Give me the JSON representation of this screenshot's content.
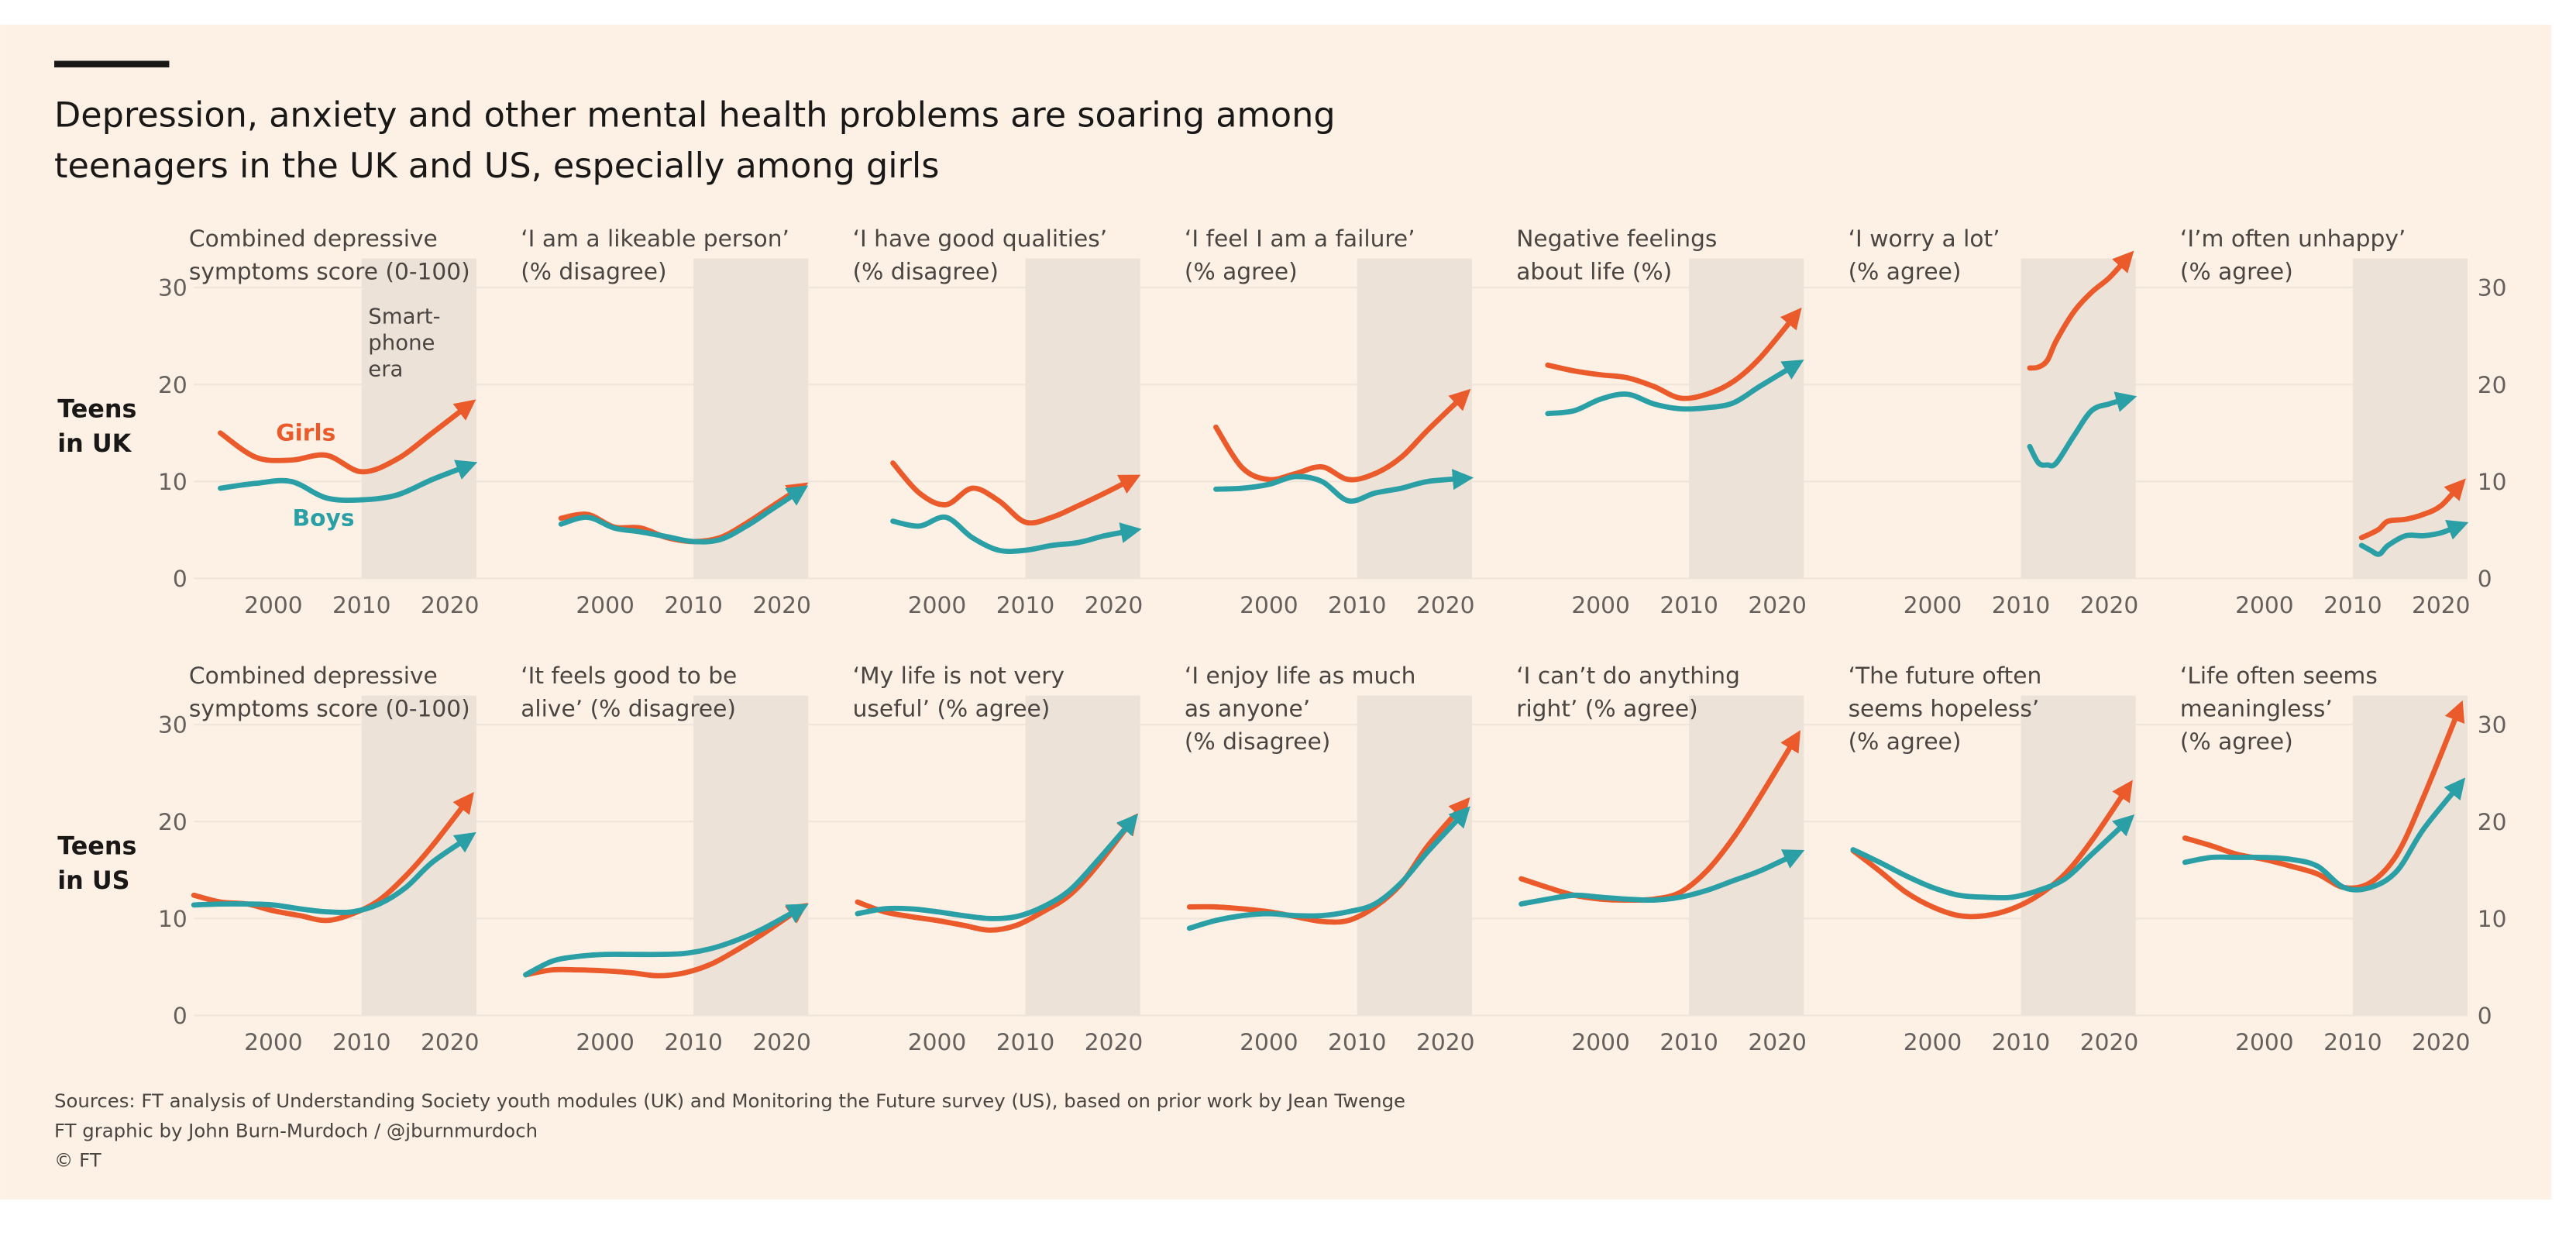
{
  "header": {
    "title": [
      "Depression, anxiety and other mental health problems are soaring among",
      "teenagers in the UK and US, especially among girls"
    ]
  },
  "rows": [
    {
      "label": [
        "Teens",
        "in UK"
      ]
    },
    {
      "label": [
        "Teens",
        "in US"
      ]
    }
  ],
  "footer": [
    "Sources: FT analysis of Understanding Society youth modules (UK) and Monitoring the Future survey (US), based on prior work by Jean Twenge",
    "FT graphic by John Burn-Murdoch / @jburnmurdoch",
    "© FT"
  ],
  "chart_data": [
    {
      "type": "line",
      "title": [
        "Combined depressive",
        "symptoms score (0-100)"
      ],
      "annotation": [
        "Smart-",
        "phone",
        "era"
      ],
      "x": [
        1994,
        1998,
        2002,
        2006,
        2010,
        2014,
        2018,
        2022
      ],
      "series": [
        {
          "name": "Girls",
          "color": "#ea5a2a",
          "values": [
            15,
            12.5,
            12.2,
            12.7,
            11,
            12.3,
            15,
            17.8
          ]
        },
        {
          "name": "Boys",
          "color": "#2a9fa5",
          "values": [
            9.3,
            9.8,
            10,
            8.3,
            8.1,
            8.6,
            10.2,
            11.6
          ]
        }
      ],
      "xlim": [
        1991,
        2023
      ],
      "ylim": [
        0,
        33
      ],
      "xticks": [
        2000,
        2010,
        2020
      ],
      "yticks": [
        0,
        10,
        20,
        30
      ],
      "yaxis": "left",
      "grid": true,
      "shade": [
        2010,
        2023
      ]
    },
    {
      "type": "line",
      "title": [
        "‘I am a likeable person’",
        "(% disagree)"
      ],
      "x": [
        1995,
        1998,
        2001,
        2004,
        2007,
        2010,
        2013,
        2016,
        2019,
        2022
      ],
      "series": [
        {
          "color": "#ea5a2a",
          "values": [
            6.2,
            6.6,
            5.3,
            5.2,
            4.2,
            3.8,
            4.2,
            5.7,
            7.5,
            9.3
          ]
        },
        {
          "color": "#2a9fa5",
          "values": [
            5.6,
            6.3,
            5.2,
            4.8,
            4.3,
            3.8,
            4.0,
            5.4,
            7.2,
            9.0
          ]
        }
      ],
      "xlim": [
        1991,
        2023
      ],
      "ylim": [
        0,
        33
      ],
      "xticks": [
        2000,
        2010,
        2020
      ],
      "shade": [
        2010,
        2023
      ]
    },
    {
      "type": "line",
      "title": [
        "‘I have good qualities’",
        "(% disagree)"
      ],
      "x": [
        1995,
        1998,
        2001,
        2004,
        2007,
        2010,
        2013,
        2016,
        2019,
        2022
      ],
      "series": [
        {
          "color": "#ea5a2a",
          "values": [
            11.9,
            8.8,
            7.6,
            9.3,
            8,
            5.8,
            6.3,
            7.5,
            8.8,
            10.2
          ]
        },
        {
          "color": "#2a9fa5",
          "values": [
            5.9,
            5.4,
            6.3,
            4.2,
            2.9,
            2.9,
            3.4,
            3.7,
            4.4,
            4.9
          ]
        }
      ],
      "xlim": [
        1991,
        2023
      ],
      "ylim": [
        0,
        33
      ],
      "xticks": [
        2000,
        2010,
        2020
      ],
      "shade": [
        2010,
        2023
      ]
    },
    {
      "type": "line",
      "title": [
        "‘I feel I am a failure’",
        "(% agree)"
      ],
      "x": [
        1994,
        1997,
        2000,
        2003,
        2006,
        2009,
        2012,
        2015,
        2018,
        2022
      ],
      "series": [
        {
          "color": "#ea5a2a",
          "values": [
            15.6,
            11.4,
            10.2,
            10.8,
            11.5,
            10.2,
            10.8,
            12.5,
            15.3,
            18.8
          ]
        },
        {
          "color": "#2a9fa5",
          "values": [
            9.2,
            9.3,
            9.7,
            10.5,
            10,
            8,
            8.8,
            9.3,
            10,
            10.3
          ]
        }
      ],
      "xlim": [
        1991,
        2023
      ],
      "ylim": [
        0,
        33
      ],
      "xticks": [
        2000,
        2010,
        2020
      ],
      "shade": [
        2010,
        2023
      ]
    },
    {
      "type": "line",
      "title": [
        "Negative feelings",
        "about life (%)"
      ],
      "x": [
        1994,
        1997,
        2000,
        2003,
        2006,
        2009,
        2012,
        2015,
        2018,
        2022
      ],
      "series": [
        {
          "color": "#ea5a2a",
          "values": [
            22,
            21.4,
            21,
            20.7,
            19.8,
            18.6,
            19,
            20.3,
            22.7,
            27.1
          ]
        },
        {
          "color": "#2a9fa5",
          "values": [
            17,
            17.3,
            18.5,
            19,
            18,
            17.5,
            17.6,
            18.1,
            19.8,
            22
          ]
        }
      ],
      "xlim": [
        1991,
        2023
      ],
      "ylim": [
        0,
        33
      ],
      "xticks": [
        2000,
        2010,
        2020
      ],
      "shade": [
        2010,
        2023
      ]
    },
    {
      "type": "line",
      "title": [
        "‘I worry a lot’",
        "(% agree)"
      ],
      "x": [
        2011,
        2012,
        2013,
        2014,
        2016,
        2018,
        2020,
        2022
      ],
      "series": [
        {
          "color": "#ea5a2a",
          "values": [
            21.7,
            21.8,
            22.5,
            24.5,
            27.5,
            29.5,
            31,
            33
          ]
        },
        {
          "color": "#2a9fa5",
          "values": [
            13.6,
            11.9,
            11.7,
            11.9,
            14.7,
            17.3,
            18,
            18.5
          ]
        }
      ],
      "xlim": [
        1991,
        2023
      ],
      "ylim": [
        0,
        33
      ],
      "xticks": [
        2000,
        2010,
        2020
      ],
      "shade": [
        2010,
        2023
      ]
    },
    {
      "type": "line",
      "title": [
        "‘I’m often unhappy’",
        "(% agree)"
      ],
      "x": [
        2011,
        2012,
        2013,
        2014,
        2016,
        2018,
        2020,
        2022
      ],
      "series": [
        {
          "color": "#ea5a2a",
          "values": [
            4.2,
            4.6,
            5.1,
            5.9,
            6.1,
            6.6,
            7.5,
            9.5
          ]
        },
        {
          "color": "#2a9fa5",
          "values": [
            3.4,
            2.9,
            2.5,
            3.4,
            4.4,
            4.4,
            4.7,
            5.4
          ]
        }
      ],
      "xlim": [
        1991,
        2023
      ],
      "ylim": [
        0,
        33
      ],
      "xticks": [
        2000,
        2010,
        2020
      ],
      "yticks": [
        0,
        10,
        20,
        30
      ],
      "yaxis": "right",
      "shade": [
        2010,
        2023
      ]
    },
    {
      "type": "line",
      "title": [
        "Combined depressive",
        "symptoms score (0-100)"
      ],
      "x": [
        1991,
        1994,
        1997,
        2000,
        2003,
        2006,
        2009,
        2012,
        2015,
        2018,
        2022
      ],
      "series": [
        {
          "color": "#ea5a2a",
          "values": [
            12.4,
            11.7,
            11.5,
            10.8,
            10.3,
            9.8,
            10.5,
            11.9,
            14.4,
            17.5,
            22.2
          ]
        },
        {
          "color": "#2a9fa5",
          "values": [
            11.4,
            11.5,
            11.5,
            11.4,
            11,
            10.7,
            10.7,
            11.5,
            13.2,
            15.8,
            18.3
          ]
        }
      ],
      "xlim": [
        1991,
        2023
      ],
      "ylim": [
        0,
        33
      ],
      "xticks": [
        2000,
        2010,
        2020
      ],
      "yticks": [
        0,
        10,
        20,
        30
      ],
      "yaxis": "left",
      "grid": true,
      "shade": [
        2010,
        2023
      ]
    },
    {
      "type": "line",
      "title": [
        "‘It feels good to be",
        "alive’ (% disagree)"
      ],
      "x": [
        1991,
        1994,
        1997,
        2000,
        2003,
        2006,
        2009,
        2012,
        2015,
        2018,
        2022
      ],
      "series": [
        {
          "color": "#ea5a2a",
          "values": [
            4.2,
            4.7,
            4.7,
            4.6,
            4.4,
            4.1,
            4.4,
            5.3,
            6.8,
            8.5,
            11
          ]
        },
        {
          "color": "#2a9fa5",
          "values": [
            4.2,
            5.6,
            6.1,
            6.3,
            6.3,
            6.3,
            6.4,
            6.9,
            7.8,
            9,
            11
          ]
        }
      ],
      "xlim": [
        1991,
        2023
      ],
      "ylim": [
        0,
        33
      ],
      "xticks": [
        2000,
        2010,
        2020
      ],
      "shade": [
        2010,
        2023
      ]
    },
    {
      "type": "line",
      "title": [
        "‘My life is not very",
        "useful’ (% agree)"
      ],
      "x": [
        1991,
        1994,
        1997,
        2000,
        2003,
        2006,
        2009,
        2012,
        2015,
        2018,
        2022
      ],
      "series": [
        {
          "color": "#ea5a2a",
          "values": [
            11.7,
            10.7,
            10.2,
            9.8,
            9.3,
            8.8,
            9.3,
            10.7,
            12.4,
            15.3,
            20
          ]
        },
        {
          "color": "#2a9fa5",
          "values": [
            10.5,
            11,
            11,
            10.7,
            10.3,
            10,
            10.2,
            11.2,
            12.9,
            15.8,
            20
          ]
        }
      ],
      "xlim": [
        1991,
        2023
      ],
      "ylim": [
        0,
        33
      ],
      "xticks": [
        2000,
        2010,
        2020
      ],
      "shade": [
        2010,
        2023
      ]
    },
    {
      "type": "line",
      "title": [
        "‘I enjoy life as much",
        "as anyone’",
        "(% disagree)"
      ],
      "x": [
        1991,
        1994,
        1997,
        2000,
        2003,
        2006,
        2009,
        2012,
        2015,
        2018,
        2022
      ],
      "series": [
        {
          "color": "#ea5a2a",
          "values": [
            11.2,
            11.2,
            11,
            10.7,
            10.2,
            9.7,
            9.8,
            11.2,
            13.6,
            17.5,
            21.7
          ]
        },
        {
          "color": "#2a9fa5",
          "values": [
            9,
            9.8,
            10.3,
            10.5,
            10.3,
            10.3,
            10.7,
            11.5,
            13.7,
            16.9,
            20.8
          ]
        }
      ],
      "xlim": [
        1991,
        2023
      ],
      "ylim": [
        0,
        33
      ],
      "xticks": [
        2000,
        2010,
        2020
      ],
      "shade": [
        2010,
        2023
      ]
    },
    {
      "type": "line",
      "title": [
        "‘I can’t do anything",
        "right’ (% agree)"
      ],
      "x": [
        1991,
        1994,
        1997,
        2000,
        2003,
        2006,
        2009,
        2012,
        2015,
        2018,
        2022
      ],
      "series": [
        {
          "color": "#ea5a2a",
          "values": [
            14.1,
            13.2,
            12.4,
            12,
            11.9,
            12,
            12.7,
            14.9,
            18.3,
            22.5,
            28.5
          ]
        },
        {
          "color": "#2a9fa5",
          "values": [
            11.5,
            12,
            12.4,
            12.2,
            12,
            11.9,
            12.2,
            12.9,
            13.9,
            14.9,
            16.6
          ]
        }
      ],
      "xlim": [
        1991,
        2023
      ],
      "ylim": [
        0,
        33
      ],
      "xticks": [
        2000,
        2010,
        2020
      ],
      "shade": [
        2010,
        2023
      ]
    },
    {
      "type": "line",
      "title": [
        "‘The future often",
        "seems hopeless’",
        "(% agree)"
      ],
      "x": [
        1991,
        1994,
        1997,
        2000,
        2003,
        2006,
        2009,
        2012,
        2015,
        2018,
        2022
      ],
      "series": [
        {
          "color": "#ea5a2a",
          "values": [
            17,
            14.9,
            12.7,
            11.2,
            10.3,
            10.3,
            11,
            12.4,
            14.6,
            18,
            23.4
          ]
        },
        {
          "color": "#2a9fa5",
          "values": [
            17.1,
            15.8,
            14.4,
            13.2,
            12.4,
            12.2,
            12.2,
            12.9,
            14.1,
            16.6,
            20
          ]
        }
      ],
      "xlim": [
        1991,
        2023
      ],
      "ylim": [
        0,
        33
      ],
      "xticks": [
        2000,
        2010,
        2020
      ],
      "shade": [
        2010,
        2023
      ]
    },
    {
      "type": "line",
      "title": [
        "‘Life often seems",
        "meaningless’",
        "(% agree)"
      ],
      "x": [
        1991,
        1994,
        1997,
        2000,
        2003,
        2006,
        2009,
        2012,
        2015,
        2018,
        2022
      ],
      "series": [
        {
          "color": "#ea5a2a",
          "values": [
            18.3,
            17.5,
            16.6,
            16.1,
            15.4,
            14.6,
            13.2,
            13.7,
            16.6,
            22.5,
            31.5
          ]
        },
        {
          "color": "#2a9fa5",
          "values": [
            15.8,
            16.3,
            16.3,
            16.3,
            16.1,
            15.4,
            13.2,
            13.2,
            14.9,
            19.2,
            23.7
          ]
        }
      ],
      "xlim": [
        1991,
        2023
      ],
      "ylim": [
        0,
        33
      ],
      "xticks": [
        2000,
        2010,
        2020
      ],
      "yticks": [
        0,
        10,
        20,
        30
      ],
      "yaxis": "right",
      "shade": [
        2010,
        2023
      ]
    }
  ]
}
